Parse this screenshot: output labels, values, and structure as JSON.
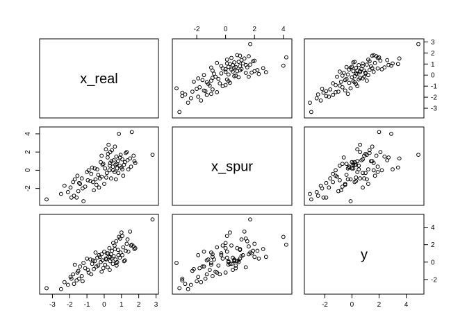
{
  "chart_data": {
    "type": "scatter",
    "kind": "pairs",
    "variables": [
      "x_real",
      "x_spur",
      "y"
    ],
    "ranges": {
      "x_real": [
        -3.5,
        2.9
      ],
      "x_spur": [
        -3.4,
        4.3
      ],
      "y": [
        -3.2,
        5.0
      ]
    },
    "ticks": {
      "x_real": [
        -3,
        -2,
        -1,
        0,
        1,
        2,
        3
      ],
      "x_spur": [
        -2,
        0,
        2,
        4
      ],
      "y": [
        -2,
        0,
        2,
        4
      ]
    },
    "observations": [
      {
        "x_real": -3.34,
        "x_spur": -3.2,
        "y": -3.0
      },
      {
        "x_real": -2.3,
        "x_spur": -1.7,
        "y": -2.3
      },
      {
        "x_real": -2.1,
        "x_spur": -2.4,
        "y": -2.6
      },
      {
        "x_real": -1.9,
        "x_spur": -3.0,
        "y": -1.9
      },
      {
        "x_real": -1.8,
        "x_spur": -1.3,
        "y": -1.4
      },
      {
        "x_real": -1.75,
        "x_spur": -2.8,
        "y": -2.5
      },
      {
        "x_real": -1.7,
        "x_spur": -1.0,
        "y": -0.3
      },
      {
        "x_real": -1.6,
        "x_spur": -3.0,
        "y": -2.1
      },
      {
        "x_real": -1.5,
        "x_spur": -2.3,
        "y": -1.0
      },
      {
        "x_real": -1.4,
        "x_spur": -1.5,
        "y": -0.5
      },
      {
        "x_real": -1.3,
        "x_spur": -0.9,
        "y": -1.6
      },
      {
        "x_real": -1.2,
        "x_spur": -3.4,
        "y": -0.1
      },
      {
        "x_real": -1.1,
        "x_spur": -1.8,
        "y": -0.7
      },
      {
        "x_real": -1.0,
        "x_spur": -0.2,
        "y": 0.4
      },
      {
        "x_real": -0.9,
        "x_spur": 0.0,
        "y": -1.2
      },
      {
        "x_real": -0.8,
        "x_spur": -1.2,
        "y": 0.3
      },
      {
        "x_real": -0.7,
        "x_spur": 0.3,
        "y": -0.2
      },
      {
        "x_real": -0.6,
        "x_spur": -2.2,
        "y": -0.8
      },
      {
        "x_real": -0.5,
        "x_spur": -1.0,
        "y": 1.1
      },
      {
        "x_real": -0.4,
        "x_spur": 0.1,
        "y": 0.5
      },
      {
        "x_real": -0.35,
        "x_spur": -0.5,
        "y": -0.4
      },
      {
        "x_real": -0.3,
        "x_spur": -1.9,
        "y": 0.8
      },
      {
        "x_real": -0.2,
        "x_spur": 0.9,
        "y": 0.0
      },
      {
        "x_real": -0.15,
        "x_spur": -0.7,
        "y": -1.1
      },
      {
        "x_real": -0.1,
        "x_spur": 0.6,
        "y": 0.2
      },
      {
        "x_real": 0.0,
        "x_spur": -1.5,
        "y": 1.2
      },
      {
        "x_real": 0.05,
        "x_spur": 0.2,
        "y": -0.3
      },
      {
        "x_real": 0.1,
        "x_spur": 2.3,
        "y": 0.4
      },
      {
        "x_real": 0.15,
        "x_spur": -0.3,
        "y": 1.0
      },
      {
        "x_real": 0.2,
        "x_spur": 1.4,
        "y": -0.6
      },
      {
        "x_real": 0.25,
        "x_spur": 2.8,
        "y": 0.6
      },
      {
        "x_real": 0.3,
        "x_spur": 0.0,
        "y": 1.6
      },
      {
        "x_real": 0.35,
        "x_spur": 0.8,
        "y": 0.1
      },
      {
        "x_real": 0.4,
        "x_spur": -0.9,
        "y": 0.9
      },
      {
        "x_real": 0.45,
        "x_spur": 2.2,
        "y": 1.3
      },
      {
        "x_real": 0.5,
        "x_spur": 0.4,
        "y": -0.2
      },
      {
        "x_real": 0.55,
        "x_spur": 1.1,
        "y": 0.7
      },
      {
        "x_real": 0.6,
        "x_spur": -0.2,
        "y": 1.9
      },
      {
        "x_real": 0.65,
        "x_spur": 0.6,
        "y": 0.3
      },
      {
        "x_real": 0.7,
        "x_spur": 1.5,
        "y": 2.4
      },
      {
        "x_real": 0.75,
        "x_spur": 0.2,
        "y": 0.0
      },
      {
        "x_real": 0.8,
        "x_spur": 1.0,
        "y": 1.4
      },
      {
        "x_real": 0.85,
        "x_spur": 4.0,
        "y": 2.9
      },
      {
        "x_real": 0.9,
        "x_spur": 0.5,
        "y": 0.5
      },
      {
        "x_real": 0.95,
        "x_spur": 1.7,
        "y": 1.1
      },
      {
        "x_real": 1.0,
        "x_spur": 0.3,
        "y": 3.4
      },
      {
        "x_real": 1.05,
        "x_spur": 1.2,
        "y": 0.8
      },
      {
        "x_real": 1.1,
        "x_spur": -0.6,
        "y": 1.7
      },
      {
        "x_real": 1.2,
        "x_spur": 0.9,
        "y": 0.2
      },
      {
        "x_real": 1.3,
        "x_spur": 2.0,
        "y": 2.1
      },
      {
        "x_real": 1.4,
        "x_spur": 0.1,
        "y": 1.2
      },
      {
        "x_real": 1.5,
        "x_spur": 1.3,
        "y": 3.5
      },
      {
        "x_real": 1.6,
        "x_spur": 4.2,
        "y": 2.0
      },
      {
        "x_real": 1.7,
        "x_spur": 1.6,
        "y": 1.8
      },
      {
        "x_real": 1.8,
        "x_spur": 0.8,
        "y": 1.6
      },
      {
        "x_real": 2.8,
        "x_spur": 1.7,
        "y": 4.9
      },
      {
        "x_real": -2.5,
        "x_spur": -2.6,
        "y": -3.1
      },
      {
        "x_real": -1.95,
        "x_spur": -1.9,
        "y": -1.7
      },
      {
        "x_real": -1.45,
        "x_spur": -1.4,
        "y": -1.9
      },
      {
        "x_real": -1.25,
        "x_spur": -2.0,
        "y": -2.2
      },
      {
        "x_real": -0.95,
        "x_spur": -1.1,
        "y": -0.9
      },
      {
        "x_real": -0.75,
        "x_spur": -0.4,
        "y": -1.4
      },
      {
        "x_real": -0.55,
        "x_spur": 0.2,
        "y": 0.1
      },
      {
        "x_real": -0.45,
        "x_spur": -1.6,
        "y": -0.5
      },
      {
        "x_real": -0.25,
        "x_spur": -0.9,
        "y": 0.6
      },
      {
        "x_real": -0.05,
        "x_spur": 0.7,
        "y": -0.7
      },
      {
        "x_real": 0.12,
        "x_spur": -0.8,
        "y": 0.3
      },
      {
        "x_real": 0.22,
        "x_spur": 1.8,
        "y": 1.0
      },
      {
        "x_real": 0.32,
        "x_spur": 0.5,
        "y": -0.9
      },
      {
        "x_real": 0.42,
        "x_spur": 1.0,
        "y": 0.4
      },
      {
        "x_real": 0.52,
        "x_spur": 0.0,
        "y": 2.2
      },
      {
        "x_real": 0.62,
        "x_spur": 2.6,
        "y": 1.5
      },
      {
        "x_real": 0.72,
        "x_spur": 0.7,
        "y": -0.4
      },
      {
        "x_real": 0.82,
        "x_spur": -0.3,
        "y": 0.8
      },
      {
        "x_real": 0.92,
        "x_spur": 1.4,
        "y": 2.7
      },
      {
        "x_real": 1.15,
        "x_spur": 0.6,
        "y": 0.1
      },
      {
        "x_real": 1.25,
        "x_spur": 1.9,
        "y": 1.3
      },
      {
        "x_real": 1.35,
        "x_spur": 1.1,
        "y": 2.6
      },
      {
        "x_real": 1.55,
        "x_spur": 0.4,
        "y": 1.9
      },
      {
        "x_real": 1.75,
        "x_spur": 1.0,
        "y": 1.5
      },
      {
        "x_real": -1.55,
        "x_spur": -0.6,
        "y": -1.2
      },
      {
        "x_real": -0.65,
        "x_spur": -1.3,
        "y": 0.2
      },
      {
        "x_real": -0.15,
        "x_spur": 1.6,
        "y": 0.9
      },
      {
        "x_real": 0.35,
        "x_spur": 2.0,
        "y": 0.6
      },
      {
        "x_real": 0.68,
        "x_spur": -1.0,
        "y": -0.1
      },
      {
        "x_real": 1.05,
        "x_spur": 0.1,
        "y": 3.0
      }
    ]
  }
}
